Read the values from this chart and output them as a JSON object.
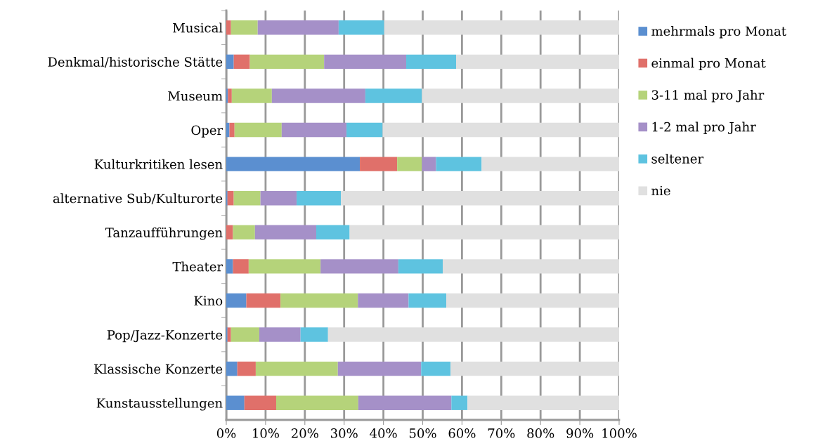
{
  "chart_data": {
    "type": "bar",
    "orientation": "horizontal",
    "stacked": true,
    "grid": "x",
    "legend": "right",
    "categories": [
      "Musical",
      "Denkmal/historische Stätte",
      "Museum",
      "Oper",
      "Kulturkritiken lesen",
      "alternative Sub/Kulturorte",
      "Tanzaufführungen",
      "Theater",
      "Kino",
      "Pop/Jazz-Konzerte",
      "Klassische Konzerte",
      "Kunstausstellungen"
    ],
    "xlim": [
      0,
      100
    ],
    "xticks": [
      {
        "value": 0,
        "label": "0%"
      },
      {
        "value": 10,
        "label": "10%"
      },
      {
        "value": 20,
        "label": "20%"
      },
      {
        "value": 30,
        "label": "30%"
      },
      {
        "value": 40,
        "label": "40%"
      },
      {
        "value": 50,
        "label": "50%"
      },
      {
        "value": 60,
        "label": "60%"
      },
      {
        "value": 70,
        "label": "70%"
      },
      {
        "value": 80,
        "label": "80%"
      },
      {
        "value": 90,
        "label": "90%"
      },
      {
        "value": 100,
        "label": "100%"
      }
    ],
    "series": [
      {
        "name": "mehrmals pro Monat",
        "color": "#5b8fd0",
        "values": [
          0,
          1.9,
          0.4,
          0.8,
          34.0,
          0.3,
          0,
          1.7,
          5.1,
          0.3,
          2.8,
          4.6
        ]
      },
      {
        "name": "einmal pro Monat",
        "color": "#e0706a",
        "values": [
          1.2,
          4.1,
          1.0,
          1.3,
          9.5,
          1.6,
          1.7,
          4.0,
          8.7,
          0.9,
          4.7,
          8.1
        ]
      },
      {
        "name": "3-11 mal pro Jahr",
        "color": "#b5d37a",
        "values": [
          6.8,
          18.9,
          10.2,
          12.0,
          6.3,
          6.8,
          5.6,
          18.3,
          19.7,
          7.2,
          20.9,
          20.9
        ]
      },
      {
        "name": "1-2 mal pro Jahr",
        "color": "#a590c8",
        "values": [
          20.6,
          20.9,
          23.8,
          16.5,
          3.6,
          9.2,
          15.6,
          19.8,
          12.9,
          10.5,
          21.2,
          23.7
        ]
      },
      {
        "name": "seltener",
        "color": "#5ec3e0",
        "values": [
          11.6,
          12.7,
          14.4,
          9.2,
          11.6,
          11.3,
          8.5,
          11.3,
          9.6,
          7.0,
          7.5,
          4.1
        ]
      },
      {
        "name": "nie",
        "color": "#e0e0e0",
        "values": [
          59.8,
          41.5,
          50.2,
          60.2,
          35.0,
          70.8,
          68.6,
          44.9,
          44.0,
          74.1,
          42.9,
          38.6
        ]
      }
    ]
  }
}
